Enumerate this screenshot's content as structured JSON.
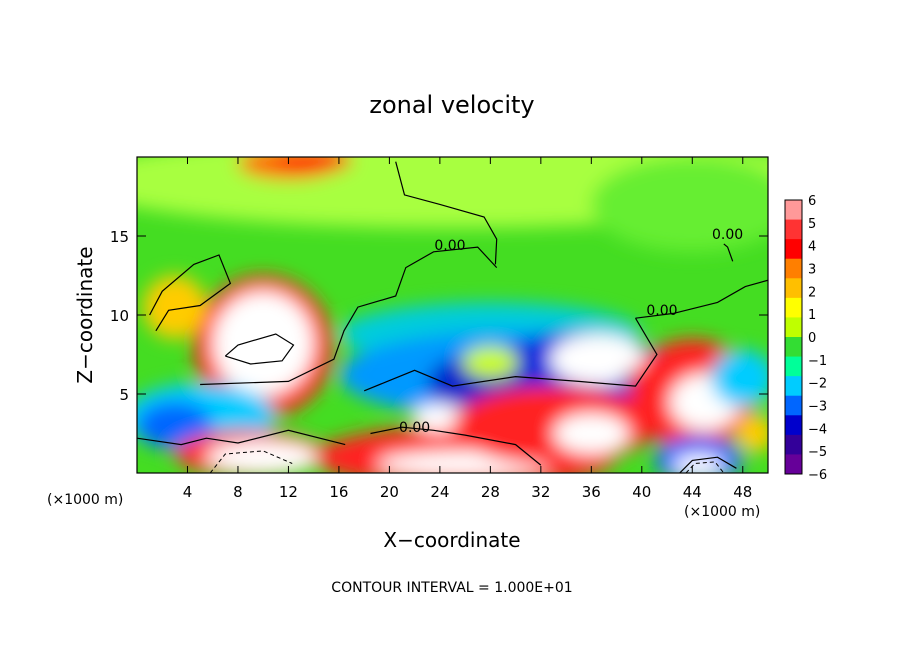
{
  "chart_data": {
    "type": "heatmap",
    "title": "zonal velocity",
    "xlabel": "X−coordinate",
    "ylabel": "Z−coordinate",
    "x_unit_left": "(×1000 m)",
    "x_unit_right": "(×1000 m)",
    "footer": "CONTOUR INTERVAL = 1.000E+01",
    "xlim": [
      0,
      50
    ],
    "ylim": [
      0,
      20
    ],
    "x_ticks": [
      "4",
      "8",
      "12",
      "16",
      "20",
      "24",
      "28",
      "32",
      "36",
      "40",
      "44",
      "48"
    ],
    "y_ticks": [
      "5",
      "10",
      "15"
    ],
    "colorbar": {
      "range": [
        -6,
        6
      ],
      "labels": [
        "6",
        "5",
        "4",
        "3",
        "2",
        "1",
        "0",
        "−1",
        "−2",
        "−3",
        "−4",
        "−5",
        "−6"
      ],
      "colors": [
        "#ff9999",
        "#ff3333",
        "#ff0000",
        "#ff7f00",
        "#ffbf00",
        "#ffff00",
        "#bfff00",
        "#33dd33",
        "#00ff99",
        "#00ccff",
        "#0066ff",
        "#0000cc",
        "#330099",
        "#660099"
      ]
    },
    "contour_labels": [
      {
        "text": "0.00",
        "x": 24.8,
        "y": 14.1
      },
      {
        "text": "0.00",
        "x": 41.6,
        "y": 10.0
      },
      {
        "text": "0.00",
        "x": 22.0,
        "y": 2.6
      },
      {
        "text": "0.00",
        "x": 46.8,
        "y": 14.8
      }
    ]
  }
}
